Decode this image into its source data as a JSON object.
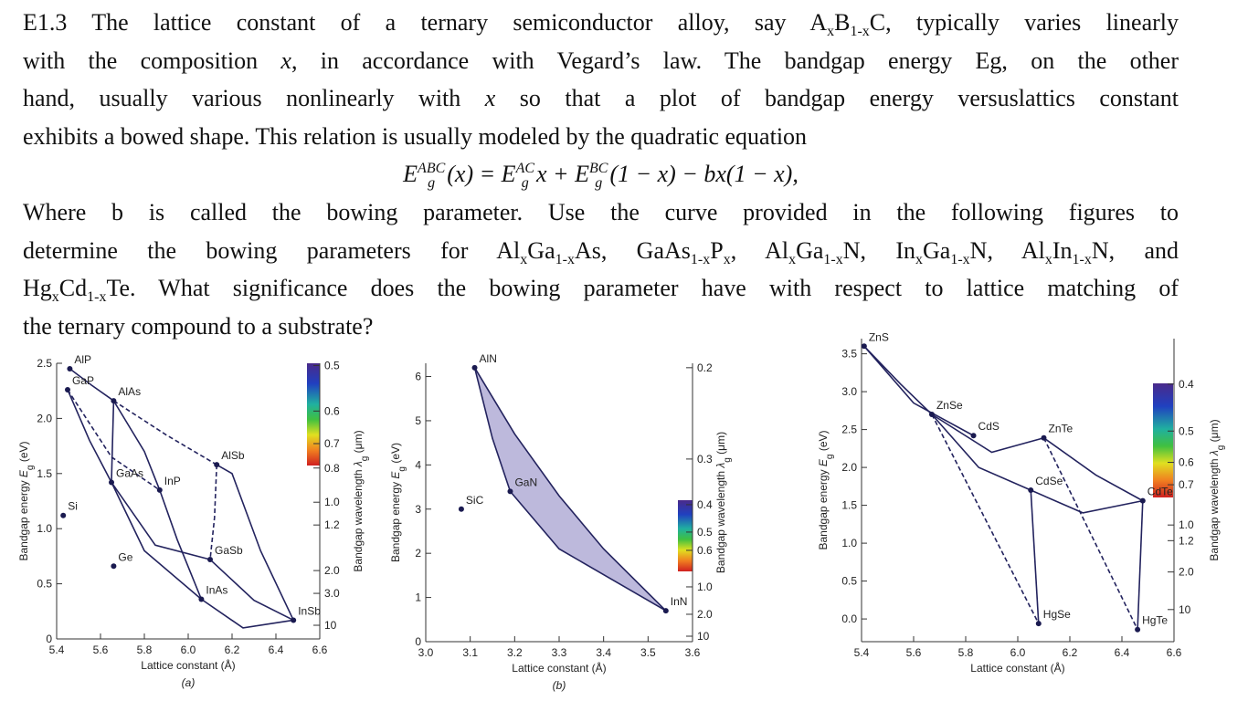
{
  "paragraph_1": [
    [
      "E1.3 The lattice constant of a ternary semiconductor alloy, say A",
      {
        "sub": "x"
      },
      "B",
      {
        "sub": "1-x"
      },
      "C, typically varies linearly"
    ],
    [
      "with the composition ",
      {
        "t": "x",
        "style": "i"
      },
      ", in accordance with Vegard’s law. The bandgap energy Eg, on the other"
    ],
    [
      "hand, usually various nonlinearly with ",
      {
        "t": "x",
        "style": "i"
      },
      " so that a plot of bandgap energy versuslattics constant"
    ],
    [
      "exhibits a bowed shape. This relation is usually modeled by the quadratic equation"
    ]
  ],
  "equation": [
    "E",
    {
      "sup": "ABC",
      "sub": "g"
    },
    "(x) = E",
    {
      "sup": "AC",
      "sub": "g"
    },
    "x + E",
    {
      "sup": "BC",
      "sub": "g"
    },
    "(1 − x) − bx(1 − x),"
  ],
  "paragraph_2": [
    [
      "Where b is called the bowing parameter. Use the curve provided in the following figures to"
    ],
    [
      "determine the bowing parameters for Al",
      {
        "sub": "x"
      },
      "Ga",
      {
        "sub": "1-x"
      },
      "As, GaAs",
      {
        "sub": "1-x"
      },
      "P",
      {
        "sub": "x"
      },
      ", Al",
      {
        "sub": "x"
      },
      "Ga",
      {
        "sub": "1-x"
      },
      "N, In",
      {
        "sub": "x"
      },
      "Ga",
      {
        "sub": "1-x"
      },
      "N, Al",
      {
        "sub": "x"
      },
      "In",
      {
        "sub": "1-x"
      },
      "N, and"
    ],
    [
      "Hg",
      {
        "sub": "x"
      },
      "Cd",
      {
        "sub": "1-x"
      },
      "Te. What significance does the bowing parameter have with respect to lattice matching of"
    ],
    [
      "the ternary compound to a substrate?"
    ]
  ],
  "figures": [
    {
      "type": "scatter",
      "caption": "(a)",
      "xlabel": "Lattice constant (Å)",
      "ylabel": [
        "Bandgap energy ",
        {
          "t": "E",
          "style": "i"
        },
        {
          "sub": "g"
        },
        " (eV)"
      ],
      "y2label": [
        "Bandgap wavelength ",
        {
          "t": "λ",
          "style": "i"
        },
        {
          "sub": "g"
        },
        " (μm)"
      ],
      "xlim": [
        5.4,
        6.6
      ],
      "ylim": [
        0,
        2.5
      ],
      "xticks": [
        5.4,
        5.6,
        5.8,
        {
          "value": 6,
          "label": "6.0"
        },
        6.2,
        6.4,
        6.6
      ],
      "yticks": [
        0,
        0.5,
        {
          "value": 1,
          "label": "1.0"
        },
        1.5,
        {
          "value": 2,
          "label": "2.0"
        },
        2.5
      ],
      "y2ticks": [
        0.5,
        0.6,
        0.7,
        0.8,
        {
          "value": 1,
          "label": "1.0"
        },
        1.2,
        {
          "value": 2,
          "label": "2.0"
        },
        {
          "value": 3,
          "label": "3.0"
        },
        10
      ],
      "points": {
        "names": [
          "AlP",
          "GaP",
          "AlAs",
          "AlSb",
          "GaAs",
          "InP",
          "Si",
          "GaSb",
          "Ge",
          "InAs",
          "InSb"
        ],
        "x": [
          5.46,
          5.45,
          5.66,
          6.13,
          5.65,
          5.87,
          5.43,
          6.1,
          5.66,
          6.06,
          6.48
        ],
        "y": [
          2.45,
          2.26,
          2.16,
          1.58,
          1.42,
          1.35,
          1.12,
          0.72,
          0.66,
          0.36,
          0.17
        ]
      },
      "curves": [
        {
          "x": [
            5.45,
            5.55,
            5.65
          ],
          "y": [
            2.26,
            1.8,
            1.42
          ],
          "dash": false
        },
        {
          "x": [
            5.46,
            5.56,
            5.66
          ],
          "y": [
            2.45,
            2.3,
            2.16
          ],
          "dash": false
        },
        {
          "x": [
            5.66,
            5.655,
            5.65
          ],
          "y": [
            2.16,
            1.8,
            1.42
          ],
          "dash": false
        },
        {
          "x": [
            5.66,
            5.9,
            6.13
          ],
          "y": [
            2.16,
            1.85,
            1.58
          ],
          "dash": true
        },
        {
          "x": [
            6.13,
            6.12,
            6.1
          ],
          "y": [
            1.58,
            1.1,
            0.72
          ],
          "dash": true
        },
        {
          "x": [
            6.13,
            6.2,
            6.33,
            6.48
          ],
          "y": [
            1.58,
            1.5,
            0.8,
            0.17
          ],
          "dash": false
        },
        {
          "x": [
            5.65,
            5.8,
            6.06
          ],
          "y": [
            1.42,
            0.8,
            0.36
          ],
          "dash": false
        },
        {
          "x": [
            5.45,
            5.65,
            5.87
          ],
          "y": [
            2.26,
            1.65,
            1.35
          ],
          "dash": true
        },
        {
          "x": [
            5.87,
            5.95,
            6.06
          ],
          "y": [
            1.35,
            0.9,
            0.36
          ],
          "dash": false
        },
        {
          "x": [
            6.06,
            6.25,
            6.48
          ],
          "y": [
            0.36,
            0.1,
            0.17
          ],
          "dash": false
        },
        {
          "x": [
            6.1,
            6.3,
            6.48
          ],
          "y": [
            0.72,
            0.35,
            0.17
          ],
          "dash": false
        },
        {
          "x": [
            5.65,
            5.85,
            6.1
          ],
          "y": [
            1.42,
            0.85,
            0.72
          ],
          "dash": false
        },
        {
          "x": [
            5.66,
            5.8,
            5.87
          ],
          "y": [
            2.16,
            1.7,
            1.35
          ],
          "dash": false
        }
      ]
    },
    {
      "type": "scatter",
      "caption": "(b)",
      "xlabel": "Lattice constant (Å)",
      "ylabel": [
        "Bandgap energy ",
        {
          "t": "E",
          "style": "i"
        },
        {
          "sub": "g"
        },
        " (eV)"
      ],
      "y2label": [
        "Bandgap wavelength ",
        {
          "t": "λ",
          "style": "i"
        },
        {
          "sub": "g"
        },
        " (μm)"
      ],
      "xlim": [
        3.0,
        3.6
      ],
      "ylim": [
        0,
        6.3
      ],
      "xticks": [
        {
          "value": 3,
          "label": "3.0"
        },
        3.1,
        3.2,
        3.3,
        3.4,
        3.5,
        3.6
      ],
      "yticks": [
        0,
        1,
        2,
        3,
        4,
        5,
        6
      ],
      "y2ticks": [
        0.2,
        0.3,
        0.4,
        0.5,
        0.6,
        {
          "value": 1,
          "label": "1.0"
        },
        {
          "value": 2,
          "label": "2.0"
        },
        10
      ],
      "points": {
        "names": [
          "AlN",
          "GaN",
          "SiC",
          "InN"
        ],
        "x": [
          3.11,
          3.19,
          3.08,
          3.54
        ],
        "y": [
          6.2,
          3.4,
          3.0,
          0.7
        ]
      },
      "fill": "#bdb9dc",
      "curves": [
        {
          "x": [
            3.11,
            3.15,
            3.19,
            3.3,
            3.54
          ],
          "y": [
            6.2,
            4.6,
            3.4,
            2.1,
            0.7
          ],
          "dash": false
        },
        {
          "x": [
            3.11,
            3.2,
            3.3,
            3.4,
            3.54
          ],
          "y": [
            6.2,
            4.7,
            3.3,
            2.1,
            0.7
          ],
          "dash": false
        }
      ]
    },
    {
      "type": "scatter",
      "xlabel": "Lattice constant (Å)",
      "ylabel": [
        "Bandgap energy ",
        {
          "t": "E",
          "style": "i"
        },
        {
          "sub": "g"
        },
        " (eV)"
      ],
      "y2label": [
        "Bandgap wavelength ",
        {
          "t": "λ",
          "style": "i"
        },
        {
          "sub": "g"
        },
        " (μm)"
      ],
      "xlim": [
        5.4,
        6.6
      ],
      "ylim": [
        -0.3,
        3.7
      ],
      "xticks": [
        5.4,
        5.6,
        5.8,
        {
          "value": 6,
          "label": "6.0"
        },
        6.2,
        6.4,
        6.6
      ],
      "yticks": [
        {
          "value": 0,
          "label": "0.0"
        },
        0.5,
        {
          "value": 1,
          "label": "1.0"
        },
        1.5,
        {
          "value": 2,
          "label": "2.0"
        },
        2.5,
        {
          "value": 3,
          "label": "3.0"
        },
        3.5
      ],
      "y2ticks": [
        0.4,
        0.5,
        0.6,
        0.7,
        {
          "value": 1,
          "label": "1.0"
        },
        1.2,
        {
          "value": 2,
          "label": "2.0"
        },
        10
      ],
      "points": {
        "names": [
          "ZnS",
          "ZnSe",
          "CdS",
          "ZnTe",
          "CdSe",
          "CdTe",
          "HgSe",
          "HgTe"
        ],
        "x": [
          5.41,
          5.67,
          5.83,
          6.1,
          6.05,
          6.48,
          6.08,
          6.46
        ],
        "y": [
          3.6,
          2.7,
          2.42,
          2.39,
          1.7,
          1.56,
          -0.06,
          -0.14
        ]
      },
      "curves": [
        {
          "x": [
            5.41,
            5.55,
            5.67
          ],
          "y": [
            3.6,
            3.1,
            2.7
          ],
          "dash": false
        },
        {
          "x": [
            5.41,
            5.6,
            5.83
          ],
          "y": [
            3.6,
            2.85,
            2.42
          ],
          "dash": false
        },
        {
          "x": [
            5.67,
            5.9,
            6.1
          ],
          "y": [
            2.7,
            2.2,
            2.39
          ],
          "dash": false
        },
        {
          "x": [
            6.1,
            6.3,
            6.48
          ],
          "y": [
            2.39,
            1.9,
            1.56
          ],
          "dash": false
        },
        {
          "x": [
            5.67,
            5.85,
            6.05
          ],
          "y": [
            2.7,
            2.0,
            1.7
          ],
          "dash": false
        },
        {
          "x": [
            6.05,
            6.25,
            6.48
          ],
          "y": [
            1.7,
            1.4,
            1.56
          ],
          "dash": false
        },
        {
          "x": [
            6.05,
            6.08
          ],
          "y": [
            1.7,
            -0.06
          ],
          "dash": false
        },
        {
          "x": [
            6.48,
            6.46
          ],
          "y": [
            1.56,
            -0.14
          ],
          "dash": false
        },
        {
          "x": [
            5.67,
            6.08
          ],
          "y": [
            2.7,
            -0.06
          ],
          "dash": true
        },
        {
          "x": [
            6.1,
            6.46
          ],
          "y": [
            2.39,
            -0.14
          ],
          "dash": true
        }
      ]
    }
  ]
}
